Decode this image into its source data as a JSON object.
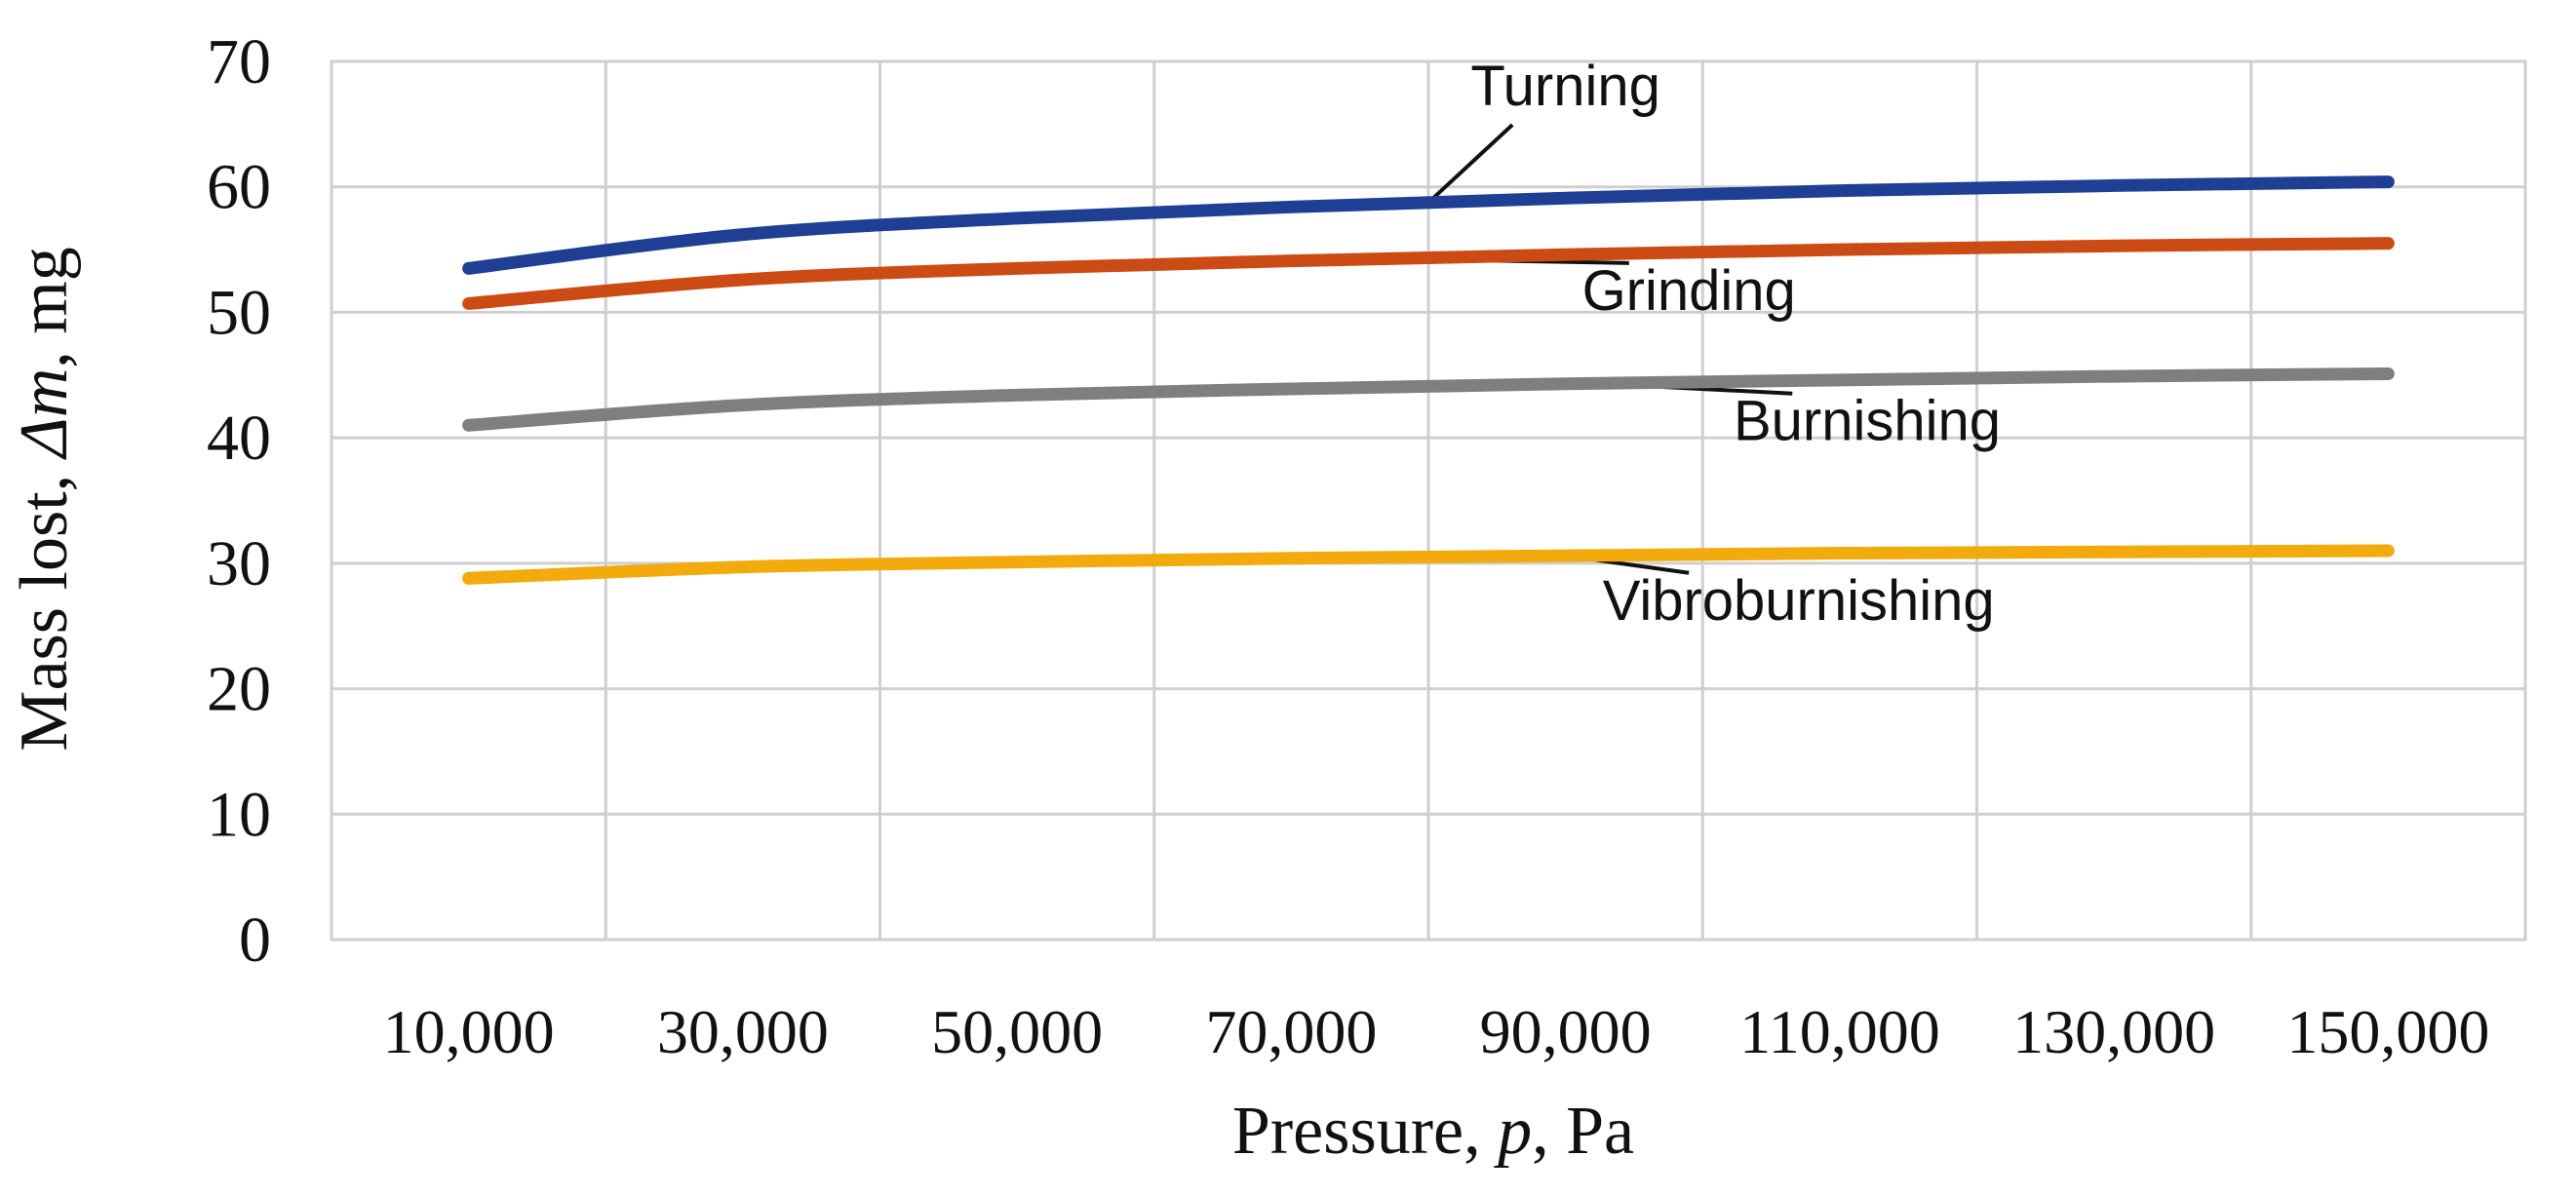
{
  "chart_data": {
    "type": "line",
    "title": "",
    "xlabel_prefix": "Pressure, ",
    "xlabel_var": "p",
    "xlabel_suffix": ", Pa",
    "ylabel_prefix": "Mass lost, ",
    "ylabel_var": "Δm",
    "ylabel_suffix": ", mg",
    "x": [
      10000,
      30000,
      50000,
      70000,
      90000,
      110000,
      130000,
      150000
    ],
    "x_tick_labels": [
      "10,000",
      "30,000",
      "50,000",
      "70,000",
      "90,000",
      "110,000",
      "130,000",
      "150,000"
    ],
    "xlim": [
      0,
      160000
    ],
    "ylim": [
      0,
      70
    ],
    "y_ticks": [
      0,
      10,
      20,
      30,
      40,
      50,
      60,
      70
    ],
    "grid": true,
    "series": [
      {
        "name": "Turning",
        "color": "#1f3f94",
        "label_at_x": 80000,
        "label_anchor_x": 90000,
        "label_anchor_y": 66.5,
        "values": [
          53.5,
          56.2,
          57.5,
          58.4,
          59.1,
          59.7,
          60.1,
          60.4
        ]
      },
      {
        "name": "Grinding",
        "color": "#cc4a14",
        "label_at_x": 77000,
        "label_anchor_x": 99000,
        "label_anchor_y": 50.2,
        "values": [
          50.7,
          52.6,
          53.5,
          54.1,
          54.6,
          55.0,
          55.3,
          55.5
        ]
      },
      {
        "name": "Burnishing",
        "color": "#7f7f7f",
        "label_at_x": 92000,
        "label_anchor_x": 112000,
        "label_anchor_y": 39.8,
        "values": [
          41.0,
          42.6,
          43.4,
          43.9,
          44.3,
          44.6,
          44.9,
          45.1
        ]
      },
      {
        "name": "Vibroburnishing",
        "color": "#f2aa0c",
        "label_at_x": 90000,
        "label_anchor_x": 107000,
        "label_anchor_y": 25.5,
        "values": [
          28.8,
          29.7,
          30.1,
          30.4,
          30.6,
          30.8,
          30.9,
          31.0
        ]
      }
    ]
  }
}
